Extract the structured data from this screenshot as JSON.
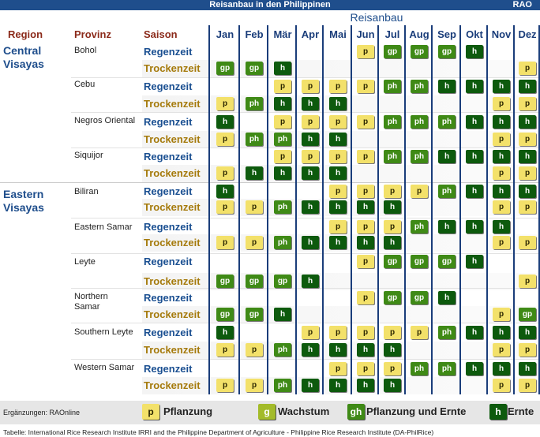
{
  "header": {
    "title": "Reisanbau in den Philippinen",
    "logo": "RAO",
    "subtitle": "Reisanbau"
  },
  "columns": {
    "region": "Region",
    "provinz": "Provinz",
    "saison": "Saison"
  },
  "months": [
    "Jan",
    "Feb",
    "Mär",
    "Apr",
    "Mai",
    "Jun",
    "Jul",
    "Aug",
    "Sep",
    "Okt",
    "Nov",
    "Dez"
  ],
  "regions": [
    {
      "name": [
        "Central",
        "Visayas"
      ],
      "top": 56
    },
    {
      "name": [
        "Eastern",
        "Visayas"
      ],
      "top": 238
    }
  ],
  "provinces": [
    {
      "name": [
        "Bohol"
      ],
      "rain": [
        "",
        "",
        "",
        "",
        "",
        "p",
        "gp",
        "gp",
        "gp",
        "h",
        "",
        ""
      ],
      "dry": [
        "gp",
        "gp",
        "h",
        "",
        "",
        "",
        "",
        "",
        "",
        "",
        "",
        "p"
      ]
    },
    {
      "name": [
        "Cebu"
      ],
      "rain": [
        "",
        "",
        "p",
        "p",
        "p",
        "p",
        "ph",
        "ph",
        "h",
        "h",
        "h",
        "h"
      ],
      "dry": [
        "p",
        "ph",
        "h",
        "h",
        "h",
        "",
        "",
        "",
        "",
        "",
        "p",
        "p"
      ]
    },
    {
      "name": [
        "Negros Oriental"
      ],
      "rain": [
        "h",
        "",
        "p",
        "p",
        "p",
        "p",
        "ph",
        "ph",
        "ph",
        "h",
        "h",
        "h"
      ],
      "dry": [
        "p",
        "ph",
        "ph",
        "h",
        "h",
        "",
        "",
        "",
        "",
        "",
        "p",
        "p"
      ]
    },
    {
      "name": [
        "Siquijor"
      ],
      "rain": [
        "",
        "",
        "p",
        "p",
        "p",
        "p",
        "ph",
        "ph",
        "h",
        "h",
        "h",
        "h"
      ],
      "dry": [
        "p",
        "h",
        "h",
        "h",
        "h",
        "",
        "",
        "",
        "",
        "",
        "p",
        "p"
      ]
    },
    {
      "name": [
        "Biliran"
      ],
      "rain": [
        "h",
        "",
        "",
        "",
        "p",
        "p",
        "p",
        "p",
        "ph",
        "h",
        "h",
        "h"
      ],
      "dry": [
        "p",
        "p",
        "ph",
        "h",
        "h",
        "h",
        "h",
        "",
        "",
        "",
        "p",
        "p"
      ]
    },
    {
      "name": [
        "Eastern Samar"
      ],
      "rain": [
        "",
        "",
        "",
        "",
        "p",
        "p",
        "p",
        "ph",
        "h",
        "h",
        "h",
        ""
      ],
      "dry": [
        "p",
        "p",
        "ph",
        "h",
        "h",
        "h",
        "h",
        "",
        "",
        "",
        "p",
        "p"
      ]
    },
    {
      "name": [
        "Leyte"
      ],
      "rain": [
        "",
        "",
        "",
        "",
        "",
        "p",
        "gp",
        "gp",
        "gp",
        "h",
        "",
        ""
      ],
      "dry": [
        "gp",
        "gp",
        "gp",
        "h",
        "",
        "",
        "",
        "",
        "",
        "",
        "",
        "p"
      ]
    },
    {
      "name": [
        "Northern",
        "Samar"
      ],
      "rain": [
        "",
        "",
        "",
        "",
        "",
        "p",
        "gp",
        "gp",
        "h",
        "",
        "",
        ""
      ],
      "dry": [
        "gp",
        "gp",
        "h",
        "",
        "",
        "",
        "",
        "",
        "",
        "",
        "p",
        "gp"
      ]
    },
    {
      "name": [
        "Southern Leyte"
      ],
      "rain": [
        "h",
        "",
        "",
        "p",
        "p",
        "p",
        "p",
        "p",
        "ph",
        "h",
        "h",
        "h"
      ],
      "dry": [
        "p",
        "p",
        "ph",
        "h",
        "h",
        "h",
        "h",
        "",
        "",
        "",
        "p",
        "p"
      ]
    },
    {
      "name": [
        "Western Samar"
      ],
      "rain": [
        "",
        "",
        "",
        "",
        "p",
        "p",
        "p",
        "ph",
        "ph",
        "h",
        "h",
        "h"
      ],
      "dry": [
        "p",
        "p",
        "ph",
        "h",
        "h",
        "h",
        "h",
        "",
        "",
        "",
        "p",
        "p"
      ]
    }
  ],
  "season_labels": {
    "rain": "Regenzeit",
    "dry": "Trockenzeit"
  },
  "legend": [
    {
      "symbol": "p",
      "label": "Pflanzung",
      "code": "p"
    },
    {
      "symbol": "g",
      "label": "Wachstum",
      "code": "g"
    },
    {
      "symbol": "gh",
      "label": "Pflanzung und Ernte",
      "code": "gp"
    },
    {
      "symbol": "h",
      "label": "Ernte",
      "code": "h"
    }
  ],
  "colors": {
    "p": "#f3e16a",
    "g": "#a3bb2a",
    "gp": "#3f8a16",
    "h": "#0d5a0d",
    "accent": "#1f4e8c"
  },
  "supplement": "Ergänzungen: RAOnline",
  "source": "Tabelle: International Rice Research Institute IRRI and the Philippine Department of Agriculture - Philippine Rice Research Institute (DA-PhilRice)"
}
